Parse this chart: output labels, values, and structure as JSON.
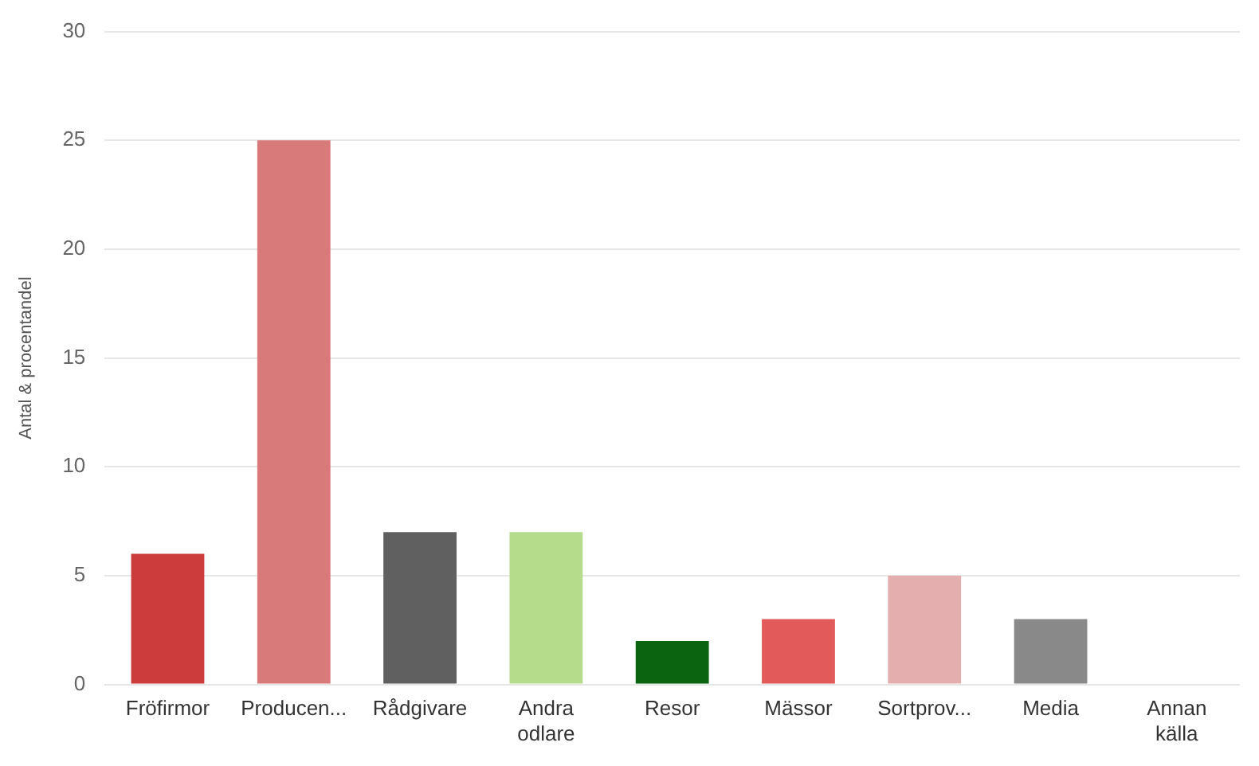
{
  "chart_data": {
    "type": "bar",
    "ylabel": "Antal & procentandel",
    "categories": [
      "Fröfirmor",
      "Producen...",
      "Rådgivare",
      "Andra odlare",
      "Resor",
      "Mässor",
      "Sortprov...",
      "Media",
      "Annan källa"
    ],
    "values": [
      6,
      25,
      7,
      7,
      2,
      3,
      5,
      3,
      0
    ],
    "colors": [
      "#cc3c3c",
      "#d97a7a",
      "#606060",
      "#b5dc8a",
      "#0b6410",
      "#e25a5a",
      "#e4aeae",
      "#898989",
      "#cccccc"
    ],
    "ylim": [
      0,
      30
    ],
    "yticks": [
      0,
      5,
      10,
      15,
      20,
      25,
      30
    ],
    "grid": "y",
    "legend": false
  }
}
